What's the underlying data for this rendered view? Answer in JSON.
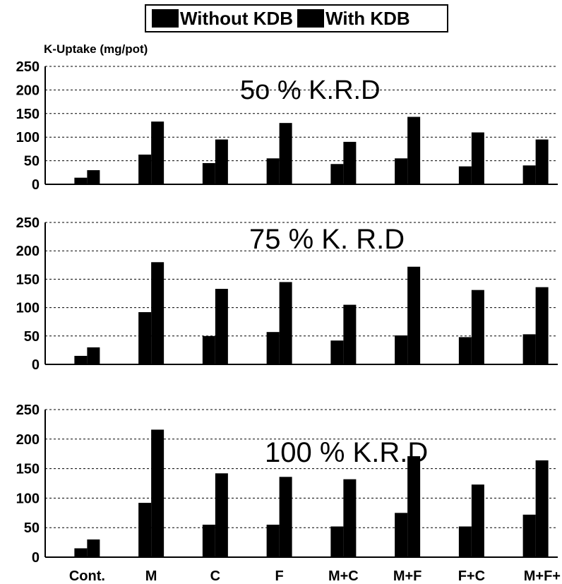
{
  "legend": {
    "without_label": "Without KDB",
    "with_label": "With KDB"
  },
  "ylabel": "K-Uptake (mg/pot)",
  "chart_data": [
    {
      "type": "bar",
      "title": "5o %  K.R.D",
      "categories": [
        "Cont.",
        "M",
        "C",
        "F",
        "M+C",
        "M+F",
        "F+C",
        "M+F+C"
      ],
      "series": [
        {
          "name": "Without KDB",
          "values": [
            14,
            63,
            45,
            55,
            43,
            55,
            38,
            40
          ]
        },
        {
          "name": "With KDB",
          "values": [
            30,
            133,
            95,
            130,
            90,
            143,
            110,
            95
          ]
        }
      ],
      "ylabel": "K-Uptake (mg/pot)",
      "ylim": [
        0,
        250
      ],
      "yticks": [
        0,
        50,
        100,
        150,
        200,
        250
      ],
      "grid": true
    },
    {
      "type": "bar",
      "title": "75 %  K. R.D",
      "categories": [
        "Cont.",
        "M",
        "C",
        "F",
        "M+C",
        "M+F",
        "F+C",
        "M+F+C"
      ],
      "series": [
        {
          "name": "Without KDB",
          "values": [
            15,
            92,
            50,
            57,
            42,
            51,
            48,
            53
          ]
        },
        {
          "name": "With KDB",
          "values": [
            30,
            180,
            133,
            145,
            105,
            172,
            131,
            136
          ]
        }
      ],
      "ylim": [
        0,
        250
      ],
      "yticks": [
        0,
        50,
        100,
        150,
        200,
        250
      ],
      "grid": true
    },
    {
      "type": "bar",
      "title": "100 %  K.R.D",
      "categories": [
        "Cont.",
        "M",
        "C",
        "F",
        "M+C",
        "M+F",
        "F+C",
        "M+F+C"
      ],
      "series": [
        {
          "name": "Without KDB",
          "values": [
            15,
            92,
            55,
            55,
            52,
            75,
            52,
            72
          ]
        },
        {
          "name": "With KDB",
          "values": [
            30,
            216,
            142,
            136,
            132,
            171,
            123,
            164
          ]
        }
      ],
      "ylim": [
        0,
        250
      ],
      "yticks": [
        0,
        50,
        100,
        150,
        200,
        250
      ],
      "grid": true,
      "xtick_labels": [
        "Cont.",
        "M",
        "C",
        "F",
        "M+C",
        "M+F",
        "F+C",
        "M+F+"
      ]
    }
  ]
}
